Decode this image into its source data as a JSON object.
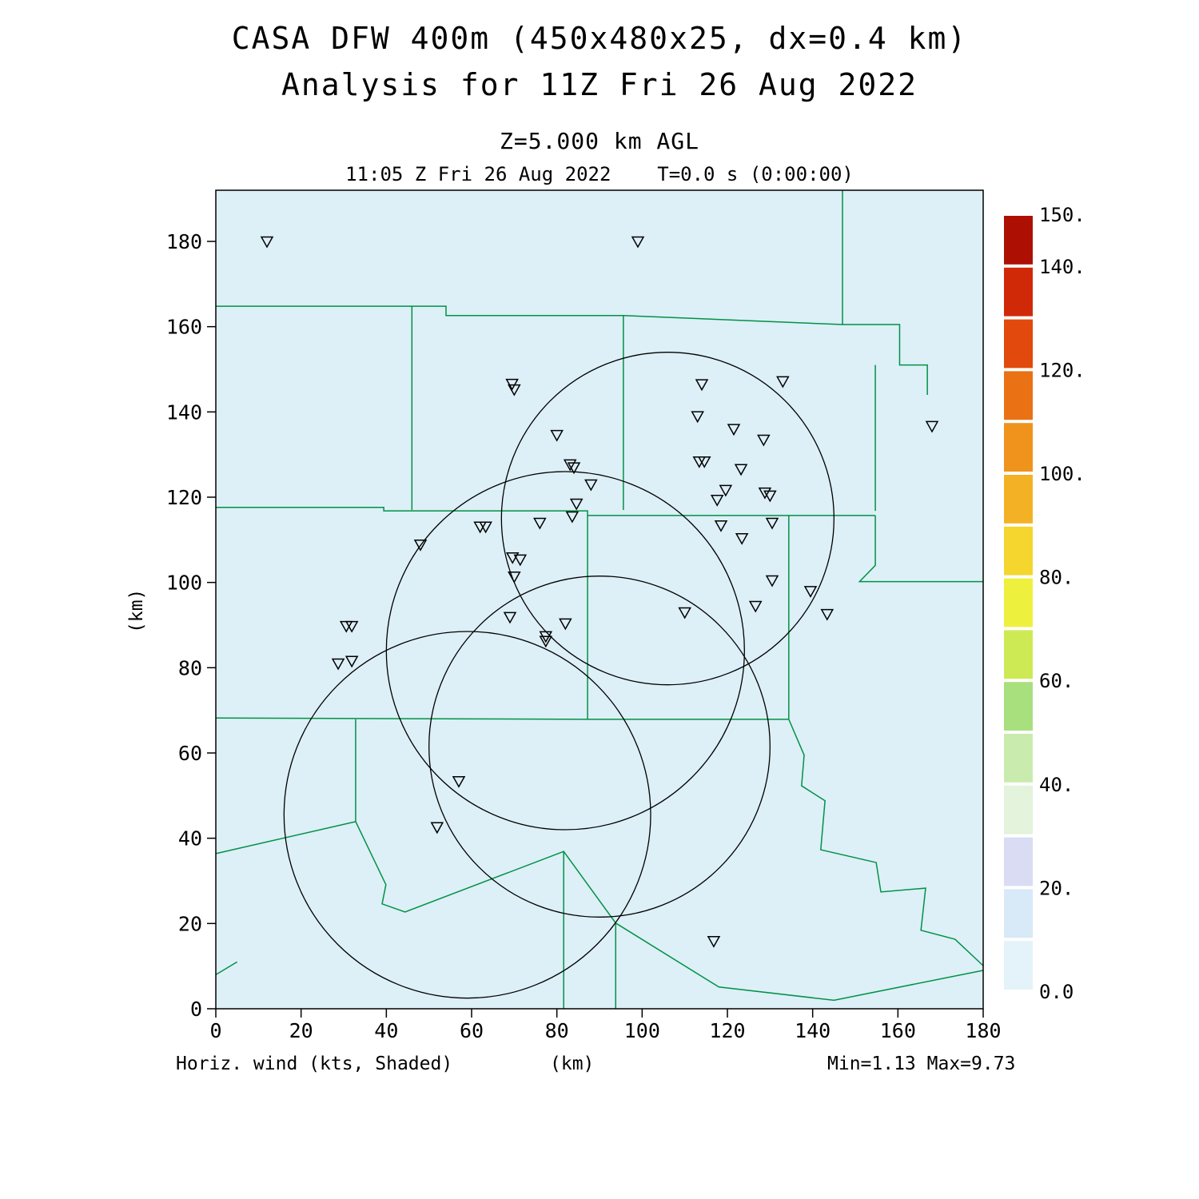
{
  "header": {
    "title": "CASA DFW 400m (450x480x25, dx=0.4 km)",
    "subtitle": "Analysis for 11Z Fri 26 Aug 2022",
    "level_label": "Z=5.000 km AGL",
    "time_label": "11:05 Z Fri 26 Aug 2022    T=0.0 s (0:00:00)"
  },
  "footer": {
    "variable_label": "Horiz. wind (kts, Shaded)",
    "x_axis_unit": "(km)",
    "range_label": "Min=1.13 Max=9.73"
  },
  "y_axis_unit": "(km)",
  "colors": {
    "background": "#ffffff",
    "field_fill": "#ddeff7",
    "county_line": "#009245",
    "ring_line": "#000000",
    "marker_line": "#000000",
    "text": "#000000"
  },
  "chart_data": {
    "type": "heatmap",
    "title": "CASA DFW 400m (450x480x25, dx=0.4 km)",
    "subtitle": "Analysis for 11Z Fri 26 Aug 2022",
    "xlabel": "(km)",
    "ylabel": "(km)",
    "xlim": [
      0,
      180
    ],
    "ylim": [
      0,
      192
    ],
    "x_ticks": [
      0,
      20,
      40,
      60,
      80,
      100,
      120,
      140,
      160,
      180
    ],
    "y_ticks": [
      0,
      20,
      40,
      60,
      80,
      100,
      120,
      140,
      160,
      180
    ],
    "field": {
      "variable": "Horiz. wind",
      "units": "kts",
      "shading": "uniform lowest bin (0-10 kts) across domain",
      "min": 1.13,
      "max": 9.73,
      "level": "Z=5.000 km AGL",
      "valid_time": "11:05 Z Fri 26 Aug 2022",
      "forecast_seconds": 0.0
    },
    "range_rings_km": [
      [
        106,
        115,
        39
      ],
      [
        82,
        84,
        42
      ],
      [
        59,
        45.5,
        43
      ],
      [
        90,
        61.5,
        40
      ]
    ],
    "stations": [
      [
        12,
        180
      ],
      [
        99,
        180
      ],
      [
        69.5,
        146.6
      ],
      [
        70,
        145.3
      ],
      [
        114,
        146.5
      ],
      [
        133,
        147.2
      ],
      [
        113,
        139
      ],
      [
        168,
        136.7
      ],
      [
        80,
        134.6
      ],
      [
        121.5,
        136
      ],
      [
        128.5,
        133.5
      ],
      [
        113.4,
        128.4
      ],
      [
        114.6,
        128.4
      ],
      [
        83.1,
        127.7
      ],
      [
        84,
        127
      ],
      [
        123.2,
        126.6
      ],
      [
        88,
        123
      ],
      [
        119.6,
        121.7
      ],
      [
        128.8,
        121.1
      ],
      [
        130,
        120.4
      ],
      [
        117.6,
        119.4
      ],
      [
        84.6,
        118.5
      ],
      [
        83.6,
        115.5
      ],
      [
        76,
        114
      ],
      [
        62,
        113.1
      ],
      [
        63.3,
        113.1
      ],
      [
        118.5,
        113.4
      ],
      [
        130.5,
        114
      ],
      [
        123.4,
        110.4
      ],
      [
        48,
        108.9
      ],
      [
        69.6,
        105.9
      ],
      [
        71.4,
        105.4
      ],
      [
        70,
        101.4
      ],
      [
        130.5,
        100.5
      ],
      [
        139.5,
        98
      ],
      [
        126.6,
        94.5
      ],
      [
        110,
        93
      ],
      [
        143.4,
        92.6
      ],
      [
        69,
        91.9
      ],
      [
        82,
        90.4
      ],
      [
        30.6,
        89.8
      ],
      [
        31.9,
        89.8
      ],
      [
        77.4,
        87.4
      ],
      [
        77.4,
        86.3
      ],
      [
        28.7,
        81
      ],
      [
        31.9,
        81.6
      ],
      [
        57,
        53.4
      ],
      [
        51.9,
        42.6
      ],
      [
        116.8,
        15.9
      ]
    ],
    "county_lines": [
      [
        [
          0,
          164.8
        ],
        [
          46,
          164.8
        ],
        [
          46,
          117
        ]
      ],
      [
        [
          46,
          164.8
        ],
        [
          54,
          164.8
        ],
        [
          54,
          162.6
        ],
        [
          95.6,
          162.6
        ],
        [
          95.6,
          117
        ]
      ],
      [
        [
          95.6,
          162.6
        ],
        [
          147,
          160.5
        ]
      ],
      [
        [
          147,
          192
        ],
        [
          147,
          160.5
        ],
        [
          160.4,
          160.5
        ],
        [
          160.4,
          151
        ],
        [
          166.9,
          151
        ],
        [
          166.9,
          144
        ]
      ],
      [
        [
          154.7,
          151
        ],
        [
          154.7,
          116.8
        ]
      ],
      [
        [
          0,
          117.6
        ],
        [
          39.4,
          117.6
        ],
        [
          39.4,
          116.8
        ],
        [
          87.2,
          116.8
        ],
        [
          87.2,
          115.7
        ],
        [
          154.7,
          115.7
        ]
      ],
      [
        [
          87.2,
          115.7
        ],
        [
          87.2,
          67.9
        ]
      ],
      [
        [
          0,
          68.2
        ],
        [
          87.2,
          67.9
        ],
        [
          134.4,
          67.9
        ]
      ],
      [
        [
          134.4,
          115.7
        ],
        [
          134.4,
          67.9
        ]
      ],
      [
        [
          154.7,
          115.7
        ],
        [
          154.7,
          104
        ],
        [
          151,
          100.2
        ],
        [
          180,
          100.2
        ]
      ],
      [
        [
          134.4,
          67.9
        ],
        [
          138,
          59.5
        ],
        [
          137.4,
          52.3
        ],
        [
          142.9,
          48.8
        ],
        [
          141.9,
          37.3
        ],
        [
          154.9,
          34.3
        ],
        [
          156,
          27.4
        ],
        [
          166.5,
          28.3
        ],
        [
          165.4,
          18.4
        ],
        [
          173.4,
          16.3
        ],
        [
          180,
          10.1
        ]
      ],
      [
        [
          0,
          36.4
        ],
        [
          32.8,
          43.9
        ]
      ],
      [
        [
          32.8,
          67.9
        ],
        [
          32.8,
          43.9
        ],
        [
          39.9,
          29.1
        ],
        [
          39,
          24.6
        ],
        [
          44.4,
          22.7
        ],
        [
          81.6,
          36.9
        ],
        [
          81.6,
          0
        ]
      ],
      [
        [
          81.6,
          36.9
        ],
        [
          93.8,
          20.1
        ],
        [
          93.8,
          0
        ]
      ],
      [
        [
          93.8,
          20.1
        ],
        [
          118,
          5.1
        ],
        [
          145,
          2
        ],
        [
          180,
          9
        ]
      ],
      [
        [
          0,
          8
        ],
        [
          5,
          11
        ]
      ]
    ],
    "colorbar": {
      "min": 0,
      "max": 150,
      "segment_colors_bottom_to_top": [
        "#e3f3f9",
        "#d8e9f7",
        "#dadcf3",
        "#e3f3dc",
        "#c9ecae",
        "#a8e07d",
        "#cdea55",
        "#eef03e",
        "#f4d62e",
        "#f3b226",
        "#f0931d",
        "#ea7114",
        "#e2490c",
        "#d02907",
        "#ad1003"
      ],
      "tick_labels": [
        {
          "value": 0,
          "label": "0.0"
        },
        {
          "value": 20,
          "label": "20."
        },
        {
          "value": 40,
          "label": "40."
        },
        {
          "value": 60,
          "label": "60."
        },
        {
          "value": 80,
          "label": "80."
        },
        {
          "value": 100,
          "label": "100."
        },
        {
          "value": 120,
          "label": "120."
        },
        {
          "value": 140,
          "label": "140."
        },
        {
          "value": 150,
          "label": "150."
        }
      ]
    }
  }
}
